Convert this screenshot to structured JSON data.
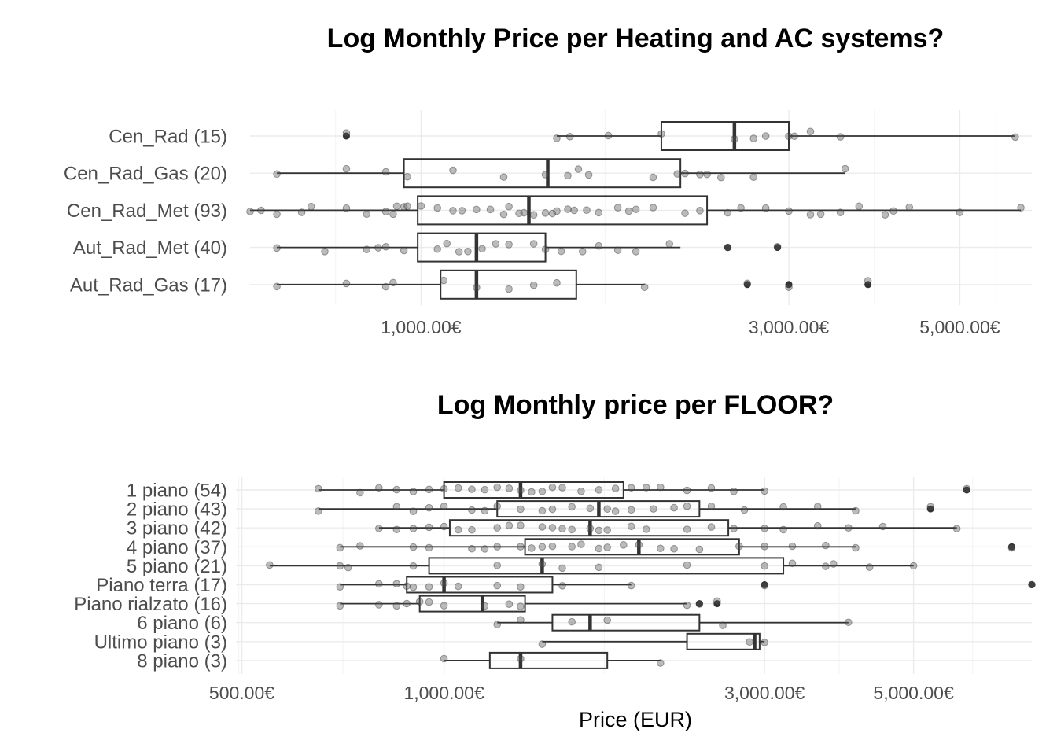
{
  "chart_data": [
    {
      "type": "boxplot",
      "title": "Log Monthly Price per Heating and AC systems?",
      "xlabel": "",
      "x_scale": "log10",
      "xlim": [
        600,
        6200
      ],
      "x_ticks": [
        1000,
        3000,
        5000
      ],
      "x_tick_labels": [
        "1,000.00€",
        "3,000.00€",
        "5,000.00€"
      ],
      "grid": true,
      "categories": [
        "Cen_Rad (15)",
        "Cen_Rad_Gas (20)",
        "Cen_Rad_Met (93)",
        "Aut_Rad_Met (40)",
        "Aut_Rad_Gas (17)"
      ],
      "boxes": [
        {
          "lower_whisker": 1500,
          "q1": 2050,
          "median": 2550,
          "q3": 3000,
          "upper_whisker": 5900,
          "outliers": [
            800
          ]
        },
        {
          "lower_whisker": 650,
          "q1": 950,
          "median": 1460,
          "q3": 2170,
          "upper_whisker": 3550,
          "outliers": []
        },
        {
          "lower_whisker": 600,
          "q1": 990,
          "median": 1380,
          "q3": 2350,
          "upper_whisker": 6000,
          "outliers": []
        },
        {
          "lower_whisker": 650,
          "q1": 990,
          "median": 1180,
          "q3": 1450,
          "upper_whisker": 2170,
          "outliers": [
            2500,
            2900
          ]
        },
        {
          "lower_whisker": 650,
          "q1": 1060,
          "median": 1180,
          "q3": 1590,
          "upper_whisker": 1950,
          "outliers": [
            2650,
            3000,
            3800
          ]
        }
      ],
      "points": [
        [
          800,
          1500,
          1560,
          1750,
          2050,
          2550,
          2700,
          2800,
          3000,
          3050,
          3200,
          3500,
          5900
        ],
        [
          650,
          800,
          900,
          960,
          1100,
          1280,
          1450,
          1550,
          1600,
          1650,
          2000,
          2150,
          2200,
          2300,
          2350,
          2450,
          2700,
          3550
        ],
        [
          600,
          620,
          650,
          700,
          720,
          800,
          850,
          900,
          920,
          930,
          950,
          960,
          1000,
          1050,
          1100,
          1130,
          1180,
          1230,
          1280,
          1300,
          1340,
          1360,
          1400,
          1450,
          1480,
          1500,
          1550,
          1580,
          1640,
          1700,
          1800,
          1860,
          1900,
          2000,
          2200,
          2300,
          2500,
          2600,
          2800,
          3000,
          3200,
          3300,
          3500,
          3700,
          4000,
          4100,
          4300,
          5000,
          6000
        ],
        [
          650,
          750,
          850,
          880,
          900,
          950,
          1050,
          1080,
          1120,
          1150,
          1200,
          1250,
          1300,
          1400,
          1450,
          1520,
          1620,
          1700,
          1800,
          1900,
          2100,
          2500,
          2900
        ],
        [
          650,
          800,
          900,
          920,
          1070,
          1180,
          1300,
          1400,
          1500,
          1950,
          2650,
          3000,
          3800
        ]
      ]
    },
    {
      "type": "boxplot",
      "title": "Log Monthly price per FLOOR?",
      "xlabel": "Price (EUR)",
      "x_scale": "log10",
      "xlim": [
        490,
        7500
      ],
      "x_ticks": [
        500,
        1000,
        3000,
        5000
      ],
      "x_tick_labels": [
        "500.00€",
        "1,000.00€",
        "3,000.00€",
        "5,000.00€"
      ],
      "grid": true,
      "categories": [
        "1 piano (54)",
        "2 piano (43)",
        "3 piano (42)",
        "4 piano (37)",
        "5 piano (21)",
        "Piano terra (17)",
        "Piano rialzato (16)",
        "6 piano (6)",
        "Ultimo piano (3)",
        "8 piano (3)"
      ],
      "boxes": [
        {
          "lower_whisker": 650,
          "q1": 1000,
          "median": 1300,
          "q3": 1850,
          "upper_whisker": 3000,
          "outliers": [
            6000
          ]
        },
        {
          "lower_whisker": 650,
          "q1": 1200,
          "median": 1700,
          "q3": 2400,
          "upper_whisker": 4100,
          "outliers": [
            5300
          ]
        },
        {
          "lower_whisker": 800,
          "q1": 1020,
          "median": 1650,
          "q3": 2650,
          "upper_whisker": 5800,
          "outliers": []
        },
        {
          "lower_whisker": 700,
          "q1": 1320,
          "median": 1950,
          "q3": 2750,
          "upper_whisker": 4100,
          "outliers": [
            7000
          ]
        },
        {
          "lower_whisker": 550,
          "q1": 950,
          "median": 1400,
          "q3": 3200,
          "upper_whisker": 5000,
          "outliers": []
        },
        {
          "lower_whisker": 700,
          "q1": 880,
          "median": 1000,
          "q3": 1450,
          "upper_whisker": 1900,
          "outliers": [
            3000,
            7500
          ]
        },
        {
          "lower_whisker": 700,
          "q1": 920,
          "median": 1140,
          "q3": 1320,
          "upper_whisker": 2300,
          "outliers": [
            2400,
            2550
          ]
        },
        {
          "lower_whisker": 1200,
          "q1": 1450,
          "median": 1650,
          "q3": 2400,
          "upper_whisker": 4000,
          "outliers": []
        },
        {
          "lower_whisker": 1400,
          "q1": 2300,
          "median": 2900,
          "q3": 2950,
          "upper_whisker": 3000,
          "outliers": []
        },
        {
          "lower_whisker": 1000,
          "q1": 1170,
          "median": 1300,
          "q3": 1750,
          "upper_whisker": 2100,
          "outliers": []
        }
      ],
      "points": [
        [
          650,
          750,
          800,
          850,
          900,
          950,
          1000,
          1050,
          1100,
          1150,
          1200,
          1250,
          1300,
          1350,
          1400,
          1450,
          1500,
          1600,
          1700,
          1800,
          1900,
          2000,
          2100,
          2300,
          2500,
          2700,
          3000,
          6000
        ],
        [
          650,
          850,
          900,
          950,
          1000,
          1100,
          1150,
          1200,
          1300,
          1400,
          1450,
          1550,
          1650,
          1750,
          1800,
          1900,
          2050,
          2200,
          2300,
          2500,
          2800,
          3200,
          3600,
          4100,
          5300
        ],
        [
          800,
          850,
          900,
          950,
          1000,
          1050,
          1100,
          1200,
          1250,
          1300,
          1400,
          1450,
          1500,
          1550,
          1650,
          1700,
          1750,
          1900,
          2000,
          2300,
          2500,
          2700,
          3000,
          3200,
          3600,
          4000,
          4500,
          5800
        ],
        [
          700,
          750,
          900,
          950,
          1100,
          1150,
          1200,
          1300,
          1350,
          1400,
          1450,
          1550,
          1600,
          1700,
          1750,
          1850,
          1950,
          2100,
          2200,
          2400,
          2750,
          3000,
          3300,
          3700,
          4100,
          7000
        ],
        [
          550,
          700,
          720,
          900,
          1200,
          1400,
          1500,
          1700,
          2300,
          3000,
          3300,
          3700,
          3800,
          4300,
          5000
        ],
        [
          700,
          800,
          850,
          880,
          900,
          950,
          1000,
          1050,
          1200,
          1300,
          1500,
          1900,
          3000,
          7500
        ],
        [
          700,
          800,
          850,
          880,
          920,
          950,
          1000,
          1150,
          1250,
          1300,
          2300,
          2400,
          2550
        ],
        [
          1200,
          1300,
          1550,
          1750,
          2600,
          4000
        ],
        [
          1400,
          2850,
          3000
        ],
        [
          1000,
          1300,
          2100
        ]
      ]
    }
  ]
}
